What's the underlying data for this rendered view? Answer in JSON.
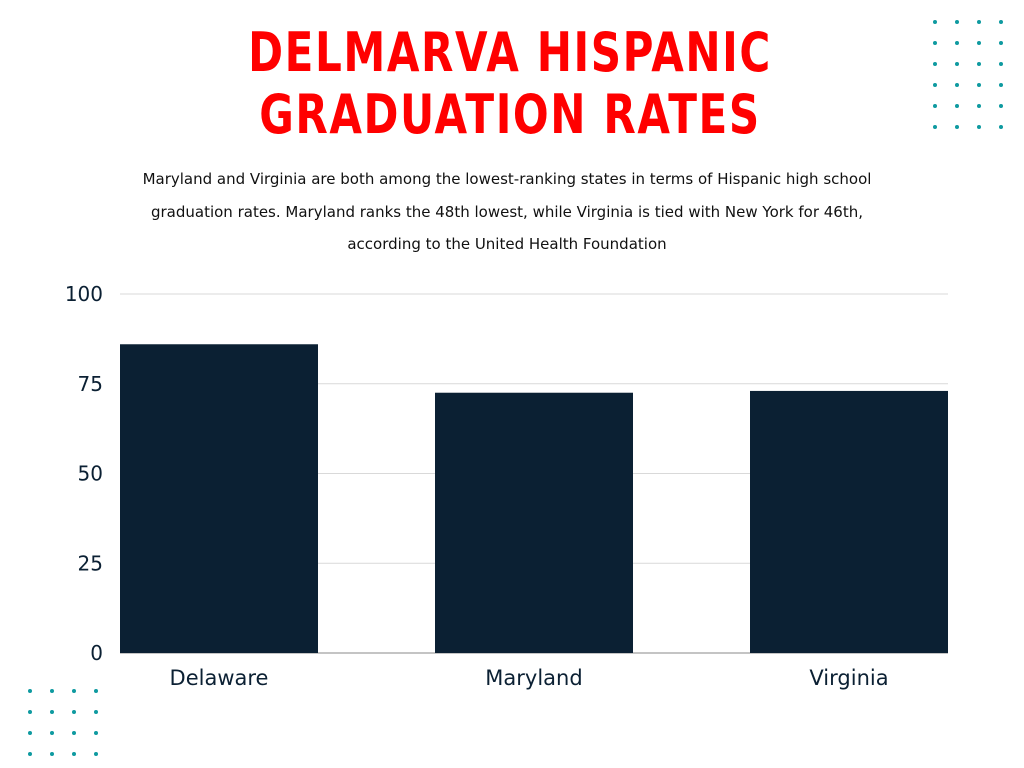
{
  "header": {
    "title": "DELMARVA HISPANIC GRADUATION RATES",
    "subtitle": "Maryland and Virginia are both among the lowest-ranking states in terms of Hispanic high school graduation rates. Maryland ranks the 48th lowest, while Virginia is tied with New York for 46th, according to the United Health Foundation"
  },
  "chart_data": {
    "type": "bar",
    "title": "DELMARVA HISPANIC GRADUATION RATES",
    "categories": [
      "Delaware",
      "Maryland",
      "Virginia"
    ],
    "values": [
      86,
      72.5,
      73
    ],
    "xlabel": "",
    "ylabel": "",
    "ylim": [
      0,
      100
    ],
    "yticks": [
      0,
      25,
      50,
      75,
      100
    ],
    "grid": true,
    "legend": "none",
    "bar_color": "#0b2033"
  },
  "colors": {
    "title": "#ff0000",
    "accent_dots": "#0e9aa0",
    "bar": "#0b2033",
    "grid": "#d9d9d9"
  }
}
